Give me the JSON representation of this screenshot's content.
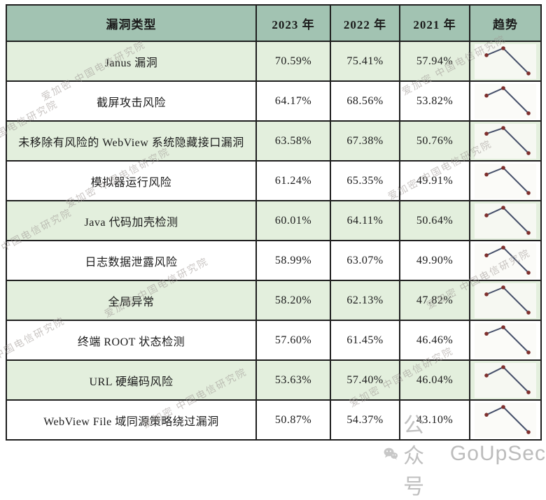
{
  "watermark": {
    "diagonal": "爱加密 中国电信研究院",
    "footer_badge": "公众号",
    "footer_brand": "GoUpSec"
  },
  "colors": {
    "header_bg": "#a2c3b2",
    "alt_row_bg": "#e3efdd",
    "border": "#1e1e1e",
    "trend_line": "#46506a",
    "trend_dot": "#7e2f2d",
    "watermark_gray": "#9c9692"
  },
  "chart_data": {
    "type": "table",
    "columns": [
      "漏洞类型",
      "2023 年",
      "2022 年",
      "2021 年",
      "趋势"
    ],
    "column_keys": [
      "label",
      "y2023",
      "y2022",
      "y2021",
      "trend"
    ],
    "sparkline_x_order": [
      "2023",
      "2022",
      "2021"
    ],
    "rows": [
      {
        "label": "Janus 漏洞",
        "y2023": "70.59%",
        "y2022": "75.41%",
        "y2021": "57.94%",
        "trend_values": [
          70.59,
          75.41,
          57.94
        ]
      },
      {
        "label": "截屏攻击风险",
        "y2023": "64.17%",
        "y2022": "68.56%",
        "y2021": "53.82%",
        "trend_values": [
          64.17,
          68.56,
          53.82
        ]
      },
      {
        "label": "未移除有风险的 WebView 系统隐藏接口漏洞",
        "y2023": "63.58%",
        "y2022": "67.38%",
        "y2021": "50.76%",
        "trend_values": [
          63.58,
          67.38,
          50.76
        ]
      },
      {
        "label": "模拟器运行风险",
        "y2023": "61.24%",
        "y2022": "65.35%",
        "y2021": "49.91%",
        "trend_values": [
          61.24,
          65.35,
          49.91
        ]
      },
      {
        "label": "Java 代码加壳检测",
        "y2023": "60.01%",
        "y2022": "64.11%",
        "y2021": "50.64%",
        "trend_values": [
          60.01,
          64.11,
          50.64
        ]
      },
      {
        "label": "日志数据泄露风险",
        "y2023": "58.99%",
        "y2022": "63.07%",
        "y2021": "49.90%",
        "trend_values": [
          58.99,
          63.07,
          49.9
        ]
      },
      {
        "label": "全局异常",
        "y2023": "58.20%",
        "y2022": "62.13%",
        "y2021": "47.82%",
        "trend_values": [
          58.2,
          62.13,
          47.82
        ]
      },
      {
        "label": "终端 ROOT 状态检测",
        "y2023": "57.60%",
        "y2022": "61.45%",
        "y2021": "46.46%",
        "trend_values": [
          57.6,
          61.45,
          46.46
        ]
      },
      {
        "label": "URL 硬编码风险",
        "y2023": "53.63%",
        "y2022": "57.40%",
        "y2021": "46.04%",
        "trend_values": [
          53.63,
          57.4,
          46.04
        ]
      },
      {
        "label": "WebView File 域同源策略绕过漏洞",
        "y2023": "50.87%",
        "y2022": "54.37%",
        "y2021": "43.10%",
        "trend_values": [
          50.87,
          54.37,
          43.1
        ]
      }
    ]
  }
}
